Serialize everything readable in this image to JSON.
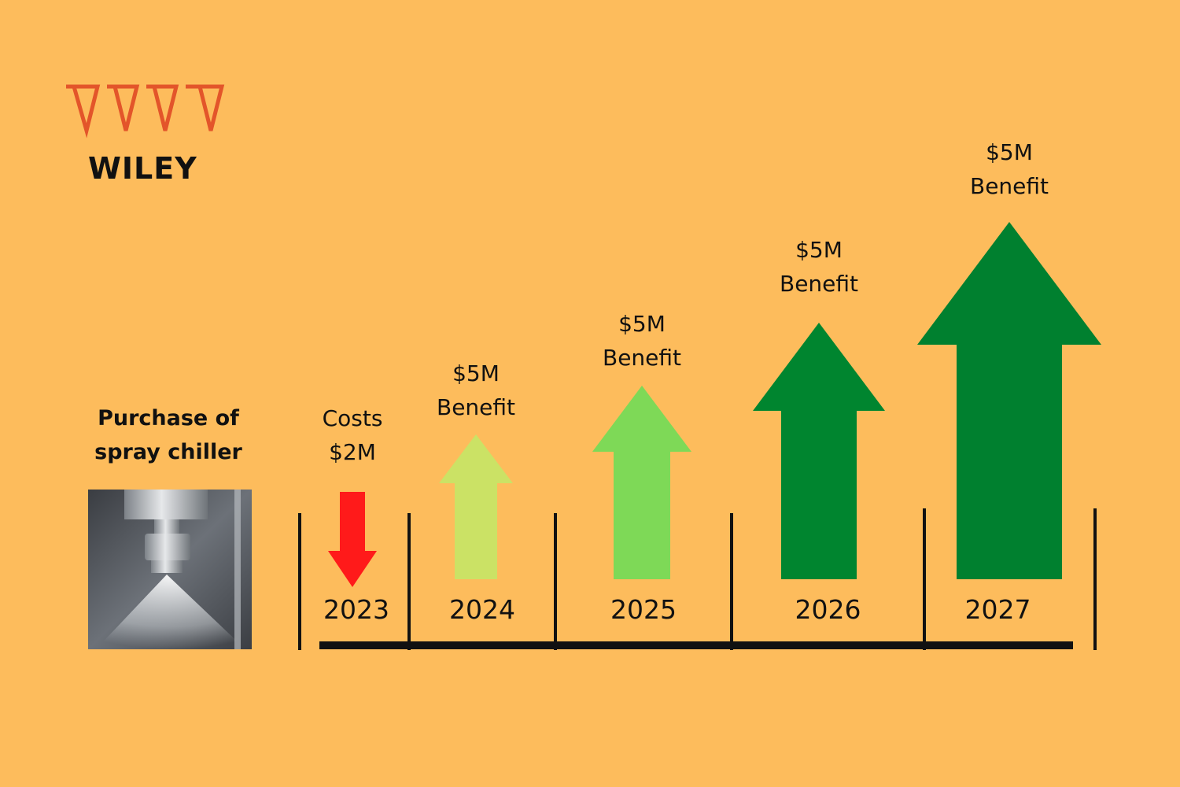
{
  "brand": {
    "name": "WILEY",
    "logo_color": "#E3552A"
  },
  "caption": {
    "line1": "Purchase of",
    "line2": "spray chiller"
  },
  "photo": {
    "icon": "spray-nozzle-photo"
  },
  "timeline": [
    {
      "year": "2023",
      "line1": "Costs",
      "line2": "$2M",
      "direction": "down",
      "color": "#FF1A1A"
    },
    {
      "year": "2024",
      "line1": "$5M",
      "line2": "Benefit",
      "direction": "up",
      "color": "#CBE265"
    },
    {
      "year": "2025",
      "line1": "$5M",
      "line2": "Benefit",
      "direction": "up",
      "color": "#7ED957"
    },
    {
      "year": "2026",
      "line1": "$5M",
      "line2": "Benefit",
      "direction": "up",
      "color": "#00852F"
    },
    {
      "year": "2027",
      "line1": "$5M",
      "line2": "Benefit",
      "direction": "up",
      "color": "#00802F"
    }
  ]
}
